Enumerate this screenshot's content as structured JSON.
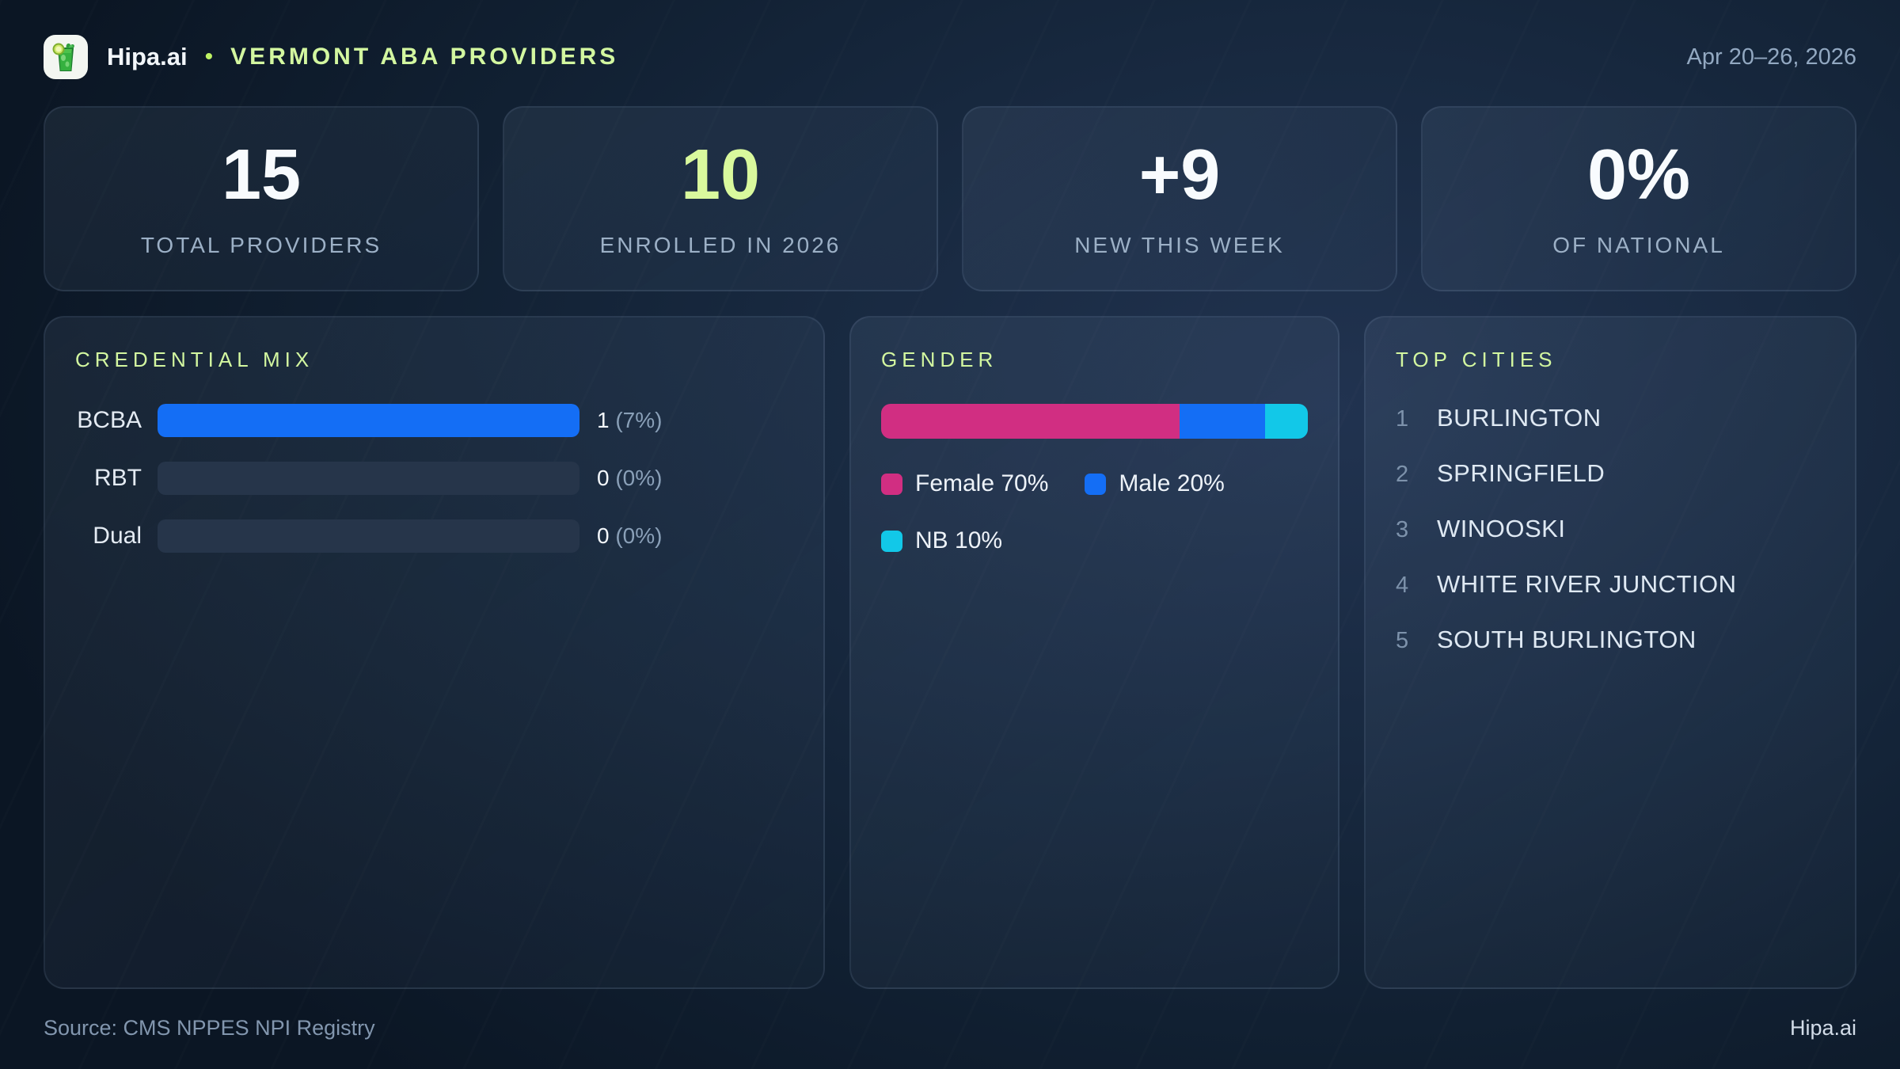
{
  "header": {
    "brand": "Hipa.ai",
    "separator": "•",
    "title": "VERMONT ABA PROVIDERS",
    "date_range": "Apr 20–26, 2026"
  },
  "stats": [
    {
      "value": "15",
      "label": "TOTAL PROVIDERS"
    },
    {
      "value": "10",
      "label": "ENROLLED IN 2026"
    },
    {
      "value": "+9",
      "label": "NEW THIS WEEK"
    },
    {
      "value": "0%",
      "label": "OF NATIONAL"
    }
  ],
  "credential_mix": {
    "title": "CREDENTIAL MIX",
    "rows": [
      {
        "label": "BCBA",
        "count": "1",
        "pct": "(7%)",
        "bar_fill_pct": 100
      },
      {
        "label": "RBT",
        "count": "0",
        "pct": "(0%)",
        "bar_fill_pct": 0
      },
      {
        "label": "Dual",
        "count": "0",
        "pct": "(0%)",
        "bar_fill_pct": 0
      }
    ]
  },
  "gender": {
    "title": "GENDER",
    "segments": [
      {
        "name": "Female",
        "pct": 70,
        "legend": "Female 70%",
        "color": "#d12e82"
      },
      {
        "name": "Male",
        "pct": 20,
        "legend": "Male 20%",
        "color": "#146ef5"
      },
      {
        "name": "NB",
        "pct": 10,
        "legend": "NB 10%",
        "color": "#12c8e8"
      }
    ]
  },
  "top_cities": {
    "title": "TOP CITIES",
    "items": [
      {
        "rank": "1",
        "name": "BURLINGTON"
      },
      {
        "rank": "2",
        "name": "SPRINGFIELD"
      },
      {
        "rank": "3",
        "name": "WINOOSKI"
      },
      {
        "rank": "4",
        "name": "WHITE RIVER JUNCTION"
      },
      {
        "rank": "5",
        "name": "SOUTH BURLINGTON"
      }
    ]
  },
  "footer": {
    "source": "Source: CMS NPPES NPI Registry",
    "brand": "Hipa.ai"
  },
  "colors": {
    "accent_lime": "#d9f99d",
    "bar_blue": "#146ef5",
    "pink": "#d12e82",
    "cyan": "#12c8e8",
    "track": "#26354a"
  },
  "chart_data": [
    {
      "type": "bar",
      "title": "CREDENTIAL MIX",
      "categories": [
        "BCBA",
        "RBT",
        "Dual"
      ],
      "values": [
        1,
        0,
        0
      ],
      "value_labels": [
        "1 (7%)",
        "0 (0%)",
        "0 (0%)"
      ],
      "xlabel": "",
      "ylabel": "",
      "legend_position": "none"
    },
    {
      "type": "bar",
      "title": "GENDER",
      "subtype": "stacked-horizontal-100pct",
      "categories": [
        "Female",
        "Male",
        "NB"
      ],
      "values": [
        70,
        20,
        10
      ],
      "legend_entries": [
        "Female 70%",
        "Male 20%",
        "NB 10%"
      ],
      "legend_position": "below"
    }
  ]
}
